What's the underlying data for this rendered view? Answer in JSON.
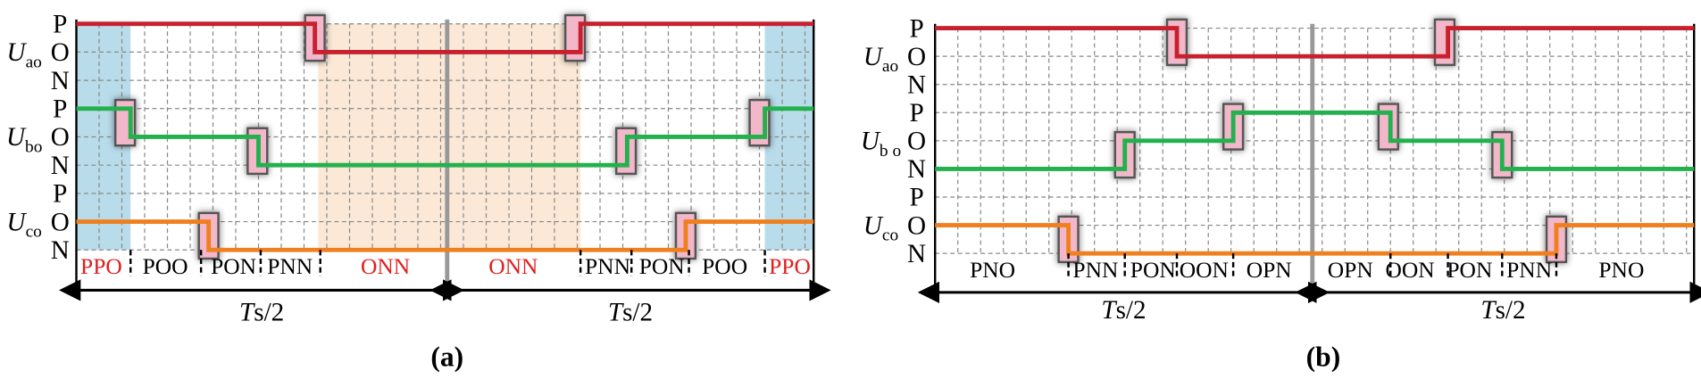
{
  "panels": [
    {
      "label": "(a)",
      "levels": [
        "P",
        "O",
        "N",
        "P",
        "O",
        "N",
        "P",
        "O",
        "N"
      ],
      "signals": [
        {
          "symbol": "U",
          "subscript": "ao"
        },
        {
          "symbol": "U",
          "subscript": "bo"
        },
        {
          "symbol": "U",
          "subscript": "co"
        }
      ],
      "states": [
        {
          "text": "PPO",
          "highlight": true
        },
        {
          "text": "POO",
          "highlight": false
        },
        {
          "text": "PON",
          "highlight": false
        },
        {
          "text": "PNN",
          "highlight": false
        },
        {
          "text": "ONN",
          "highlight": true
        },
        {
          "text": "ONN",
          "highlight": true
        },
        {
          "text": "PNN",
          "highlight": false
        },
        {
          "text": "PON",
          "highlight": false
        },
        {
          "text": "POO",
          "highlight": false
        },
        {
          "text": "PPO",
          "highlight": true
        }
      ],
      "half_periods": [
        {
          "symbol": "T",
          "rest": "s/2"
        },
        {
          "symbol": "T",
          "rest": "s/2"
        }
      ]
    },
    {
      "label": "(b)",
      "levels": [
        "P",
        "O",
        "N",
        "P",
        "O",
        "N",
        "P",
        "O",
        "N"
      ],
      "signals": [
        {
          "symbol": "U",
          "subscript": "ao"
        },
        {
          "symbol": "U",
          "subscript": "b o"
        },
        {
          "symbol": "U",
          "subscript": "co"
        }
      ],
      "states": [
        {
          "text": "PNO",
          "highlight": false
        },
        {
          "text": "PNN",
          "highlight": false
        },
        {
          "text": "PON",
          "highlight": false
        },
        {
          "text": "OON",
          "highlight": false
        },
        {
          "text": "OPN",
          "highlight": false
        },
        {
          "text": "OPN",
          "highlight": false
        },
        {
          "text": "OON",
          "highlight": false
        },
        {
          "text": "PON",
          "highlight": false
        },
        {
          "text": "PNN",
          "highlight": false
        },
        {
          "text": "PNO",
          "highlight": false
        }
      ],
      "half_periods": [
        {
          "symbol": "T",
          "rest": "s/2"
        },
        {
          "symbol": "T",
          "rest": "s/2"
        }
      ]
    }
  ]
}
